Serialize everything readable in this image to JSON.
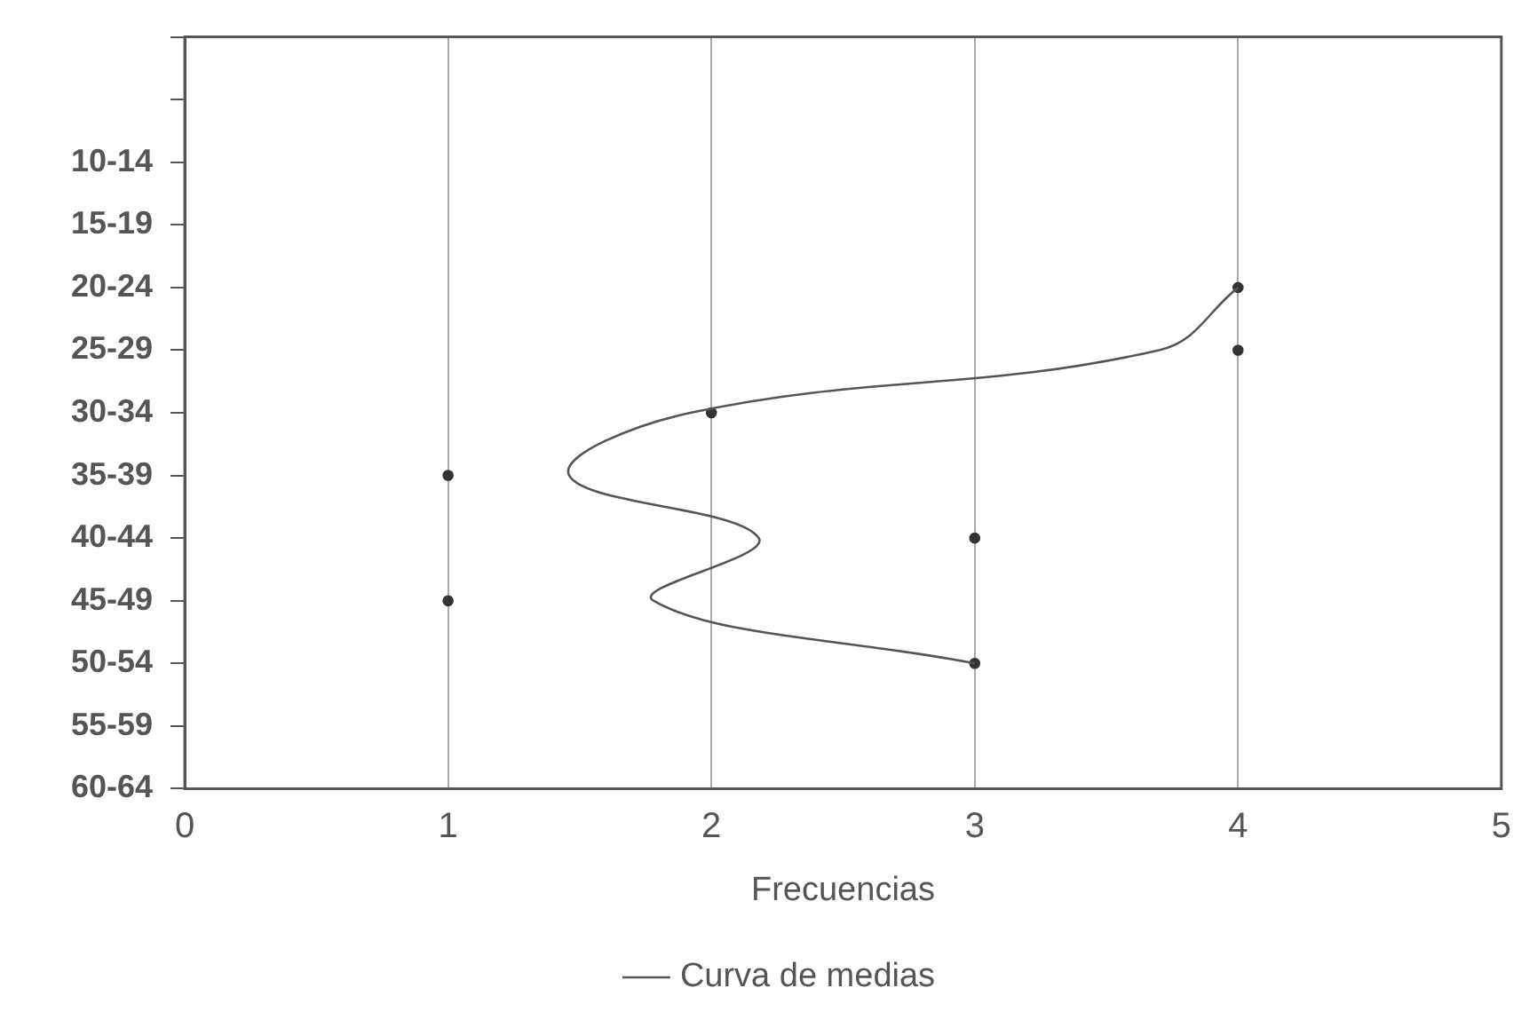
{
  "chart_data": {
    "type": "line",
    "orientation": "horizontal",
    "xlabel": "Frecuencias",
    "categories": [
      null,
      null,
      "10-14",
      "15-19",
      "20-24",
      "25-29",
      "30-34",
      "35-39",
      "40-44",
      "45-49",
      "50-54",
      "55-59",
      "60-64"
    ],
    "series": [
      {
        "name": "Curva de medias",
        "type": "line",
        "color": "#555555",
        "marker": "none",
        "values": [
          null,
          null,
          null,
          null,
          4,
          3.7,
          1.92,
          1.46,
          2.18,
          1.78,
          3,
          null,
          null
        ]
      },
      {
        "type": "scatter",
        "color": "#333333",
        "marker": "circle",
        "values": [
          null,
          null,
          null,
          null,
          4,
          4,
          2,
          1,
          3,
          1,
          3,
          null,
          null
        ]
      }
    ],
    "xlim": [
      0,
      5
    ],
    "xticks": [
      0,
      1,
      2,
      3,
      4,
      5
    ],
    "grid": "x",
    "legend": "bottom"
  }
}
